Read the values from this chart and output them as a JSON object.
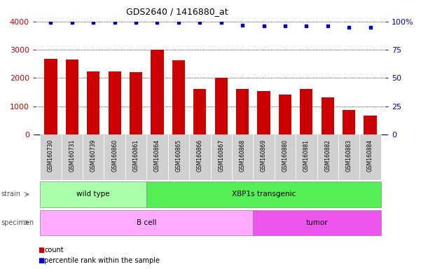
{
  "title": "GDS2640 / 1416880_at",
  "samples": [
    "GSM160730",
    "GSM160731",
    "GSM160739",
    "GSM160860",
    "GSM160861",
    "GSM160864",
    "GSM160865",
    "GSM160866",
    "GSM160867",
    "GSM160868",
    "GSM160869",
    "GSM160880",
    "GSM160881",
    "GSM160882",
    "GSM160883",
    "GSM160884"
  ],
  "counts": [
    2670,
    2650,
    2220,
    2220,
    2200,
    3000,
    2620,
    1600,
    2000,
    1600,
    1540,
    1420,
    1600,
    1310,
    870,
    680
  ],
  "percentile_ranks": [
    99,
    99,
    99,
    99,
    99,
    99,
    99,
    99,
    99,
    97,
    96,
    96,
    96,
    96,
    95,
    95
  ],
  "bar_color": "#cc0000",
  "dot_color": "#0000cc",
  "ylim_left": [
    0,
    4000
  ],
  "ylim_right": [
    0,
    100
  ],
  "yticks_left": [
    0,
    1000,
    2000,
    3000,
    4000
  ],
  "yticks_right": [
    0,
    25,
    50,
    75,
    100
  ],
  "strain_groups": [
    {
      "label": "wild type",
      "start": 0,
      "end": 5,
      "color": "#aaffaa"
    },
    {
      "label": "XBP1s transgenic",
      "start": 5,
      "end": 16,
      "color": "#55ee55"
    }
  ],
  "specimen_groups": [
    {
      "label": "B cell",
      "start": 0,
      "end": 10,
      "color": "#ffaaff"
    },
    {
      "label": "tumor",
      "start": 10,
      "end": 16,
      "color": "#ee55ee"
    }
  ],
  "strain_label": "strain",
  "specimen_label": "specimen",
  "legend_count_label": "count",
  "legend_percentile_label": "percentile rank within the sample",
  "left_axis_color": "#cc0000",
  "right_axis_color": "#0000cc"
}
